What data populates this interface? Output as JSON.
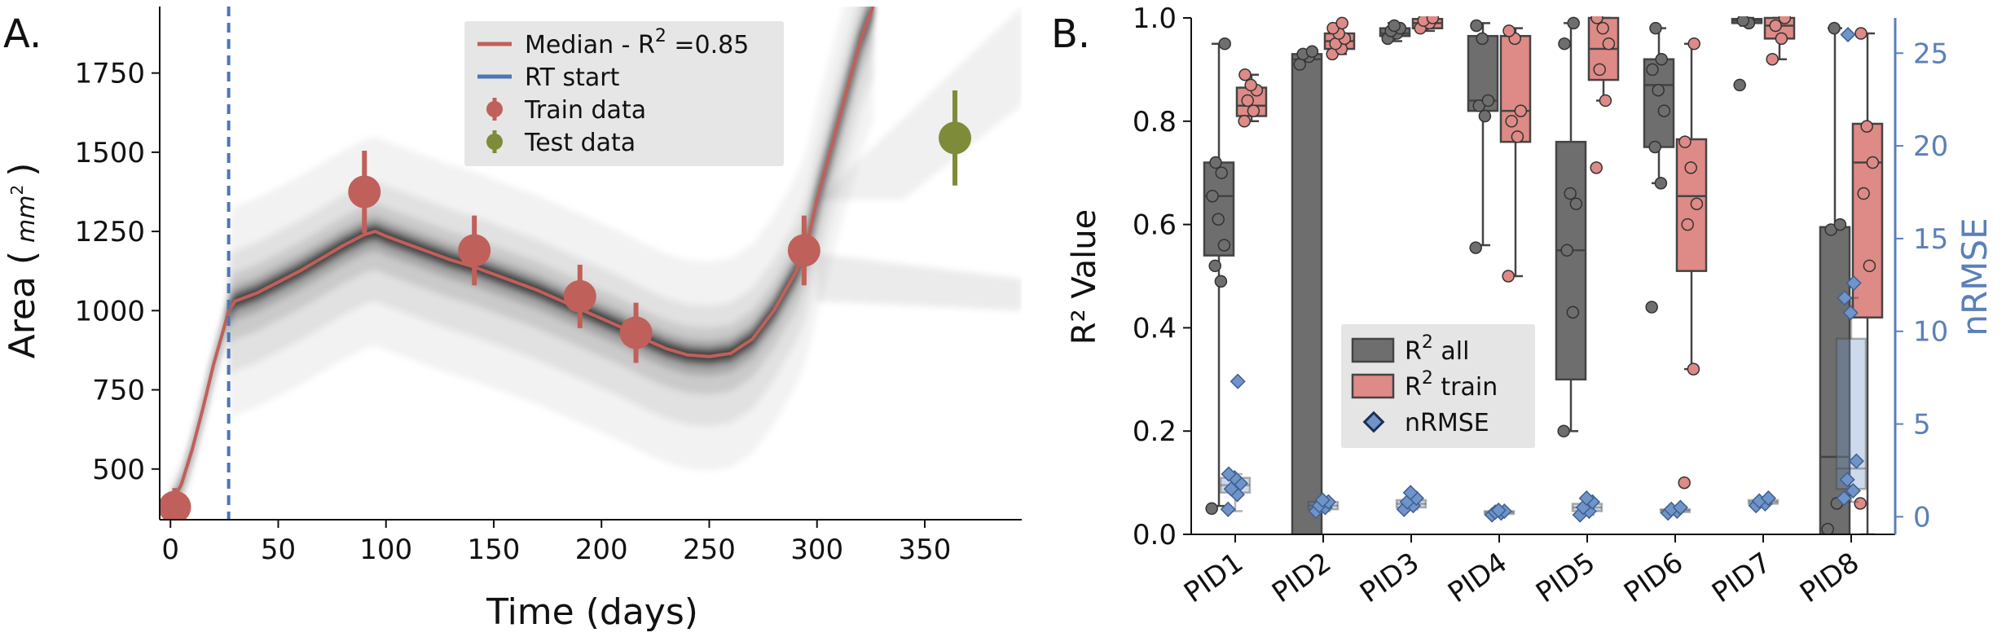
{
  "chart_data": [
    {
      "panel_label": "A.",
      "type": "line",
      "xlabel": "Time (days)",
      "ylabel_main": "Area (",
      "ylabel_unit": "mm",
      "ylabel_unit_exp": "2",
      "ylabel_close": ")",
      "xlim": [
        -5,
        395
      ],
      "ylim": [
        340,
        1960
      ],
      "xticks": [
        0,
        50,
        100,
        150,
        200,
        250,
        300,
        350
      ],
      "xtick_labels": [
        "0",
        "50",
        "100",
        "150",
        "200",
        "250",
        "300",
        "350"
      ],
      "yticks": [
        500,
        750,
        1000,
        1250,
        1500,
        1750
      ],
      "ytick_labels": [
        "500",
        "750",
        "1000",
        "1250",
        "1500",
        "1750"
      ],
      "rt_start_x": 27,
      "median": {
        "x": [
          0,
          5,
          10,
          15,
          20,
          25,
          27,
          30,
          40,
          50,
          60,
          70,
          80,
          90,
          95,
          100,
          110,
          120,
          130,
          140,
          150,
          160,
          170,
          180,
          190,
          200,
          210,
          220,
          230,
          240,
          250,
          260,
          270,
          280,
          290,
          295,
          300,
          310,
          320,
          326
        ],
        "y": [
          390,
          450,
          560,
          690,
          830,
          950,
          1000,
          1030,
          1055,
          1090,
          1125,
          1165,
          1205,
          1240,
          1250,
          1235,
          1210,
          1185,
          1160,
          1140,
          1115,
          1090,
          1065,
          1035,
          1005,
          975,
          945,
          910,
          880,
          860,
          855,
          865,
          910,
          1000,
          1120,
          1200,
          1350,
          1600,
          1850,
          1960
        ]
      },
      "train_data": {
        "x": [
          2,
          90,
          141,
          190,
          216,
          294
        ],
        "y": [
          380,
          1375,
          1190,
          1045,
          930,
          1190
        ],
        "err": [
          60,
          130,
          110,
          100,
          95,
          110
        ]
      },
      "test_data": {
        "x": [
          364
        ],
        "y": [
          1545
        ],
        "err": [
          150
        ]
      },
      "legend": [
        {
          "label": "Median - R",
          "sup": "2",
          "suffix": " =0.85",
          "kind": "line",
          "color": "#c0605a"
        },
        {
          "label": "RT start",
          "sup": "",
          "suffix": "",
          "kind": "line",
          "color": "#4a78b5"
        },
        {
          "label": "Train data",
          "sup": "",
          "suffix": "",
          "kind": "marker",
          "color": "#c0605a"
        },
        {
          "label": "Test data",
          "sup": "",
          "suffix": "",
          "kind": "marker",
          "color": "#7e8c3a"
        }
      ],
      "legend_placement": "upper-right",
      "colors": {
        "median": "#c0605a",
        "rt_start": "#4a78b5",
        "train": "#c0605a",
        "test": "#7e8c3a",
        "band": "#000000"
      }
    },
    {
      "panel_label": "B.",
      "type": "box",
      "categories": [
        "PID1",
        "PID2",
        "PID3",
        "PID4",
        "PID5",
        "PID6",
        "PID7",
        "PID8"
      ],
      "ylabel": "R² Value",
      "y2label": "nRMSE",
      "ylim": [
        0,
        1
      ],
      "y2lim": [
        -0.95,
        26.9
      ],
      "yticks": [
        0.0,
        0.2,
        0.4,
        0.6,
        0.8,
        1.0
      ],
      "ytick_labels": [
        "0.0",
        "0.2",
        "0.4",
        "0.6",
        "0.8",
        "1.0"
      ],
      "y2ticks": [
        0,
        5,
        10,
        15,
        20,
        25
      ],
      "y2tick_labels": [
        "0",
        "5",
        "10",
        "15",
        "20",
        "25"
      ],
      "series": [
        {
          "name": "R² all",
          "color": "#6e6e6e",
          "boxes": [
            {
              "whislo": 0.055,
              "q1": 0.54,
              "med": 0.655,
              "q3": 0.72,
              "whishi": 0.95,
              "points": [
                0.05,
                0.49,
                0.52,
                0.56,
                0.61,
                0.655,
                0.7,
                0.72,
                0.95
              ]
            },
            {
              "whislo": 0.0,
              "q1": 0.0,
              "med": 0.92,
              "q3": 0.93,
              "whishi": 0.935,
              "points": [
                0.91,
                0.925,
                0.93,
                0.935
              ]
            },
            {
              "whislo": 0.955,
              "q1": 0.965,
              "med": 0.97,
              "q3": 0.98,
              "whishi": 0.99,
              "points": [
                0.96,
                0.97,
                0.975,
                0.98,
                0.985
              ]
            },
            {
              "whislo": 0.56,
              "q1": 0.82,
              "med": 0.84,
              "q3": 0.965,
              "whishi": 0.99,
              "points": [
                0.555,
                0.81,
                0.83,
                0.84,
                0.96,
                0.985
              ]
            },
            {
              "whislo": 0.2,
              "q1": 0.3,
              "med": 0.55,
              "q3": 0.76,
              "whishi": 0.99,
              "points": [
                0.2,
                0.43,
                0.55,
                0.64,
                0.66,
                0.95,
                0.99
              ]
            },
            {
              "whislo": 0.68,
              "q1": 0.75,
              "med": 0.87,
              "q3": 0.92,
              "whishi": 0.98,
              "points": [
                0.44,
                0.68,
                0.75,
                0.82,
                0.86,
                0.9,
                0.92,
                0.98
              ]
            },
            {
              "whislo": 0.985,
              "q1": 0.99,
              "med": 0.995,
              "q3": 0.998,
              "whishi": 1.0,
              "points": [
                0.87,
                0.99,
                0.995
              ]
            },
            {
              "whislo": 0.0,
              "q1": 0.0,
              "med": 0.15,
              "q3": 0.595,
              "whishi": 0.98,
              "points": [
                0.01,
                0.06,
                0.59,
                0.6,
                0.98
              ]
            }
          ]
        },
        {
          "name": "R² train",
          "color": "#de8a86",
          "boxes": [
            {
              "whislo": 0.8,
              "q1": 0.81,
              "med": 0.83,
              "q3": 0.865,
              "whishi": 0.89,
              "points": [
                0.8,
                0.82,
                0.84,
                0.86,
                0.87,
                0.89
              ]
            },
            {
              "whislo": 0.93,
              "q1": 0.94,
              "med": 0.955,
              "q3": 0.97,
              "whishi": 0.985,
              "points": [
                0.93,
                0.94,
                0.95,
                0.96,
                0.97,
                0.98,
                0.99
              ]
            },
            {
              "whislo": 0.975,
              "q1": 0.98,
              "med": 0.99,
              "q3": 0.998,
              "whishi": 1.0,
              "points": [
                0.98,
                0.99,
                0.995,
                1.0
              ]
            },
            {
              "whislo": 0.5,
              "q1": 0.76,
              "med": 0.82,
              "q3": 0.965,
              "whishi": 0.98,
              "points": [
                0.5,
                0.77,
                0.8,
                0.82,
                0.96,
                0.975
              ]
            },
            {
              "whislo": 0.84,
              "q1": 0.88,
              "med": 0.94,
              "q3": 1.0,
              "whishi": 1.0,
              "points": [
                0.71,
                0.84,
                0.9,
                0.95,
                0.98,
                1.0
              ]
            },
            {
              "whislo": 0.32,
              "q1": 0.51,
              "med": 0.655,
              "q3": 0.765,
              "whishi": 0.95,
              "points": [
                0.1,
                0.32,
                0.6,
                0.64,
                0.71,
                0.76,
                0.95
              ]
            },
            {
              "whislo": 0.92,
              "q1": 0.96,
              "med": 0.985,
              "q3": 1.0,
              "whishi": 1.0,
              "points": [
                0.92,
                0.96,
                0.985,
                1.0
              ]
            },
            {
              "whislo": 0.0,
              "q1": 0.42,
              "med": 0.72,
              "q3": 0.795,
              "whishi": 0.97,
              "points": [
                0.06,
                0.52,
                0.66,
                0.72,
                0.79,
                0.97
              ]
            }
          ]
        },
        {
          "name": "nRMSE",
          "color": "#6f94c9",
          "boxes": [
            {
              "whislo": 0.3,
              "q1": 1.3,
              "med": 1.7,
              "q3": 2.1,
              "whishi": 2.3,
              "points": [
                0.4,
                1.2,
                1.5,
                1.8,
                2.1,
                2.3,
                7.3
              ]
            },
            {
              "whislo": 0.3,
              "q1": 0.4,
              "med": 0.6,
              "q3": 0.8,
              "whishi": 0.9,
              "points": [
                0.3,
                0.5,
                0.6,
                0.8,
                0.9
              ]
            },
            {
              "whislo": 0.4,
              "q1": 0.5,
              "med": 0.7,
              "q3": 0.9,
              "whishi": 1.3,
              "points": [
                0.4,
                0.6,
                0.8,
                1.0,
                1.3
              ]
            },
            {
              "whislo": 0.1,
              "q1": 0.15,
              "med": 0.25,
              "q3": 0.3,
              "whishi": 0.35,
              "points": [
                0.1,
                0.2,
                0.25,
                0.3,
                0.35
              ]
            },
            {
              "whislo": 0.1,
              "q1": 0.3,
              "med": 0.5,
              "q3": 0.7,
              "whishi": 1.0,
              "points": [
                0.1,
                0.3,
                0.5,
                0.8,
                1.0
              ]
            },
            {
              "whislo": 0.2,
              "q1": 0.25,
              "med": 0.35,
              "q3": 0.4,
              "whishi": 0.5,
              "points": [
                0.2,
                0.3,
                0.4,
                0.5
              ]
            },
            {
              "whislo": 0.6,
              "q1": 0.7,
              "med": 0.8,
              "q3": 0.9,
              "whishi": 1.0,
              "points": [
                0.6,
                0.7,
                0.85,
                1.0
              ]
            },
            {
              "whislo": 0.8,
              "q1": 1.5,
              "med": 2.6,
              "q3": 9.6,
              "whishi": 11.8,
              "points": [
                1.0,
                1.4,
                2.0,
                3.0,
                11.0,
                11.8,
                12.6,
                26.0
              ]
            }
          ]
        }
      ],
      "legend": [
        {
          "label": "R",
          "sup": "2",
          "suffix": " all",
          "kind": "box",
          "color": "#6e6e6e"
        },
        {
          "label": "R",
          "sup": "2",
          "suffix": " train",
          "kind": "box",
          "color": "#de8a86"
        },
        {
          "label": "nRMSE",
          "sup": "",
          "suffix": "",
          "kind": "diamond",
          "color": "#6f94c9"
        }
      ],
      "legend_placement": "center-left",
      "colors": {
        "axis_right": "#5b80b8"
      }
    }
  ]
}
